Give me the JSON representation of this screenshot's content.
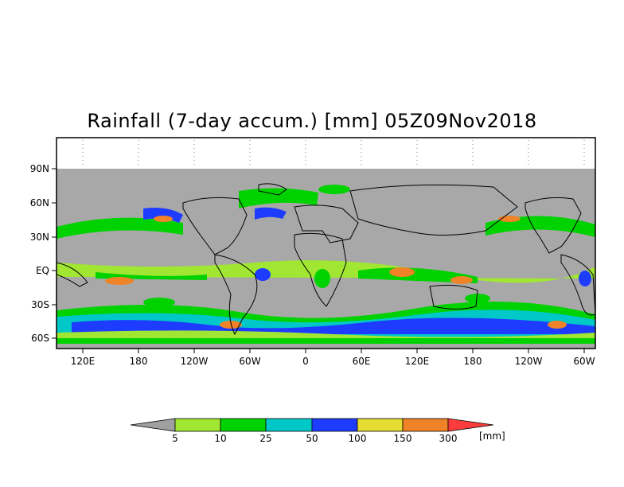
{
  "title": "Rainfall (7-day accum.) [mm] 05Z09Nov2018",
  "lat_labels": [
    "90N",
    "60N",
    "30N",
    "EQ",
    "30S",
    "60S"
  ],
  "lon_labels": [
    "120E",
    "180",
    "120W",
    "60W",
    "0",
    "60E",
    "120E",
    "180",
    "120W",
    "60W"
  ],
  "colorbar": {
    "unit": "[mm]",
    "thresholds": [
      "5",
      "10",
      "25",
      "50",
      "100",
      "150",
      "300"
    ],
    "colors": [
      "#a0a0a0",
      "#a0e632",
      "#00d200",
      "#00c8c8",
      "#1e3cff",
      "#e6dc32",
      "#f08228",
      "#fa3c3c"
    ]
  },
  "map_colors": {
    "no_rain": "#a8a8a8",
    "missing": "#bebebe"
  }
}
